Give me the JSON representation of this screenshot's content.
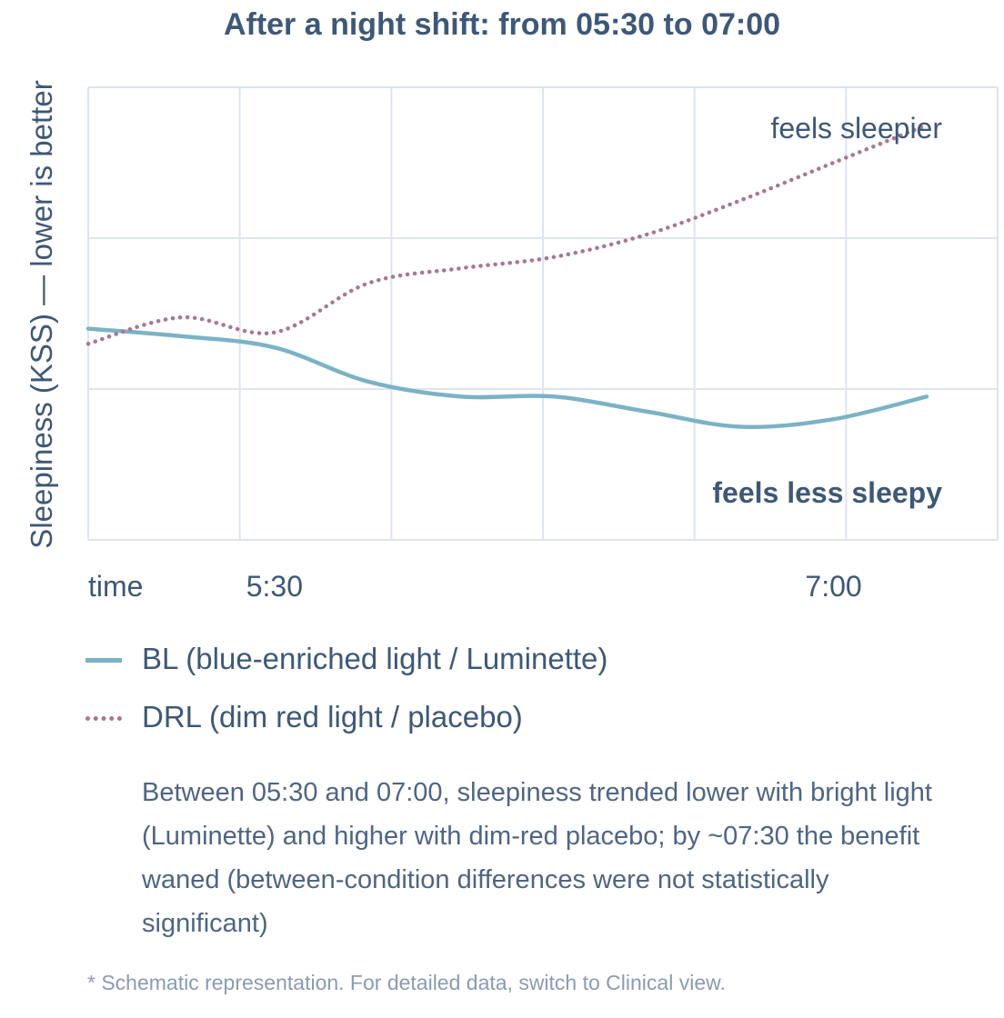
{
  "chart_data": {
    "type": "line",
    "title": "After a night shift: from 05:30 to 07:00",
    "ylabel": "Sleepiness (KSS) — lower is better",
    "xlabel": "time",
    "x_ticks": [
      "5:30",
      "7:00"
    ],
    "grid": true,
    "annotations": {
      "top": "feels sleepier",
      "bottom": "feels less sleepy"
    },
    "series": [
      {
        "name": "BL (blue-enriched light / Luminette)",
        "style": "solid",
        "color": "#7bb2c6",
        "x": [
          "05:00",
          "05:15",
          "05:30",
          "05:45",
          "06:00",
          "06:15",
          "06:30",
          "06:45",
          "07:00",
          "07:15"
        ],
        "y": [
          5.6,
          5.4,
          5.1,
          4.2,
          3.8,
          3.8,
          3.4,
          3.0,
          3.2,
          3.8
        ]
      },
      {
        "name": "DRL (dim red light / placebo)",
        "style": "dotted",
        "color": "#a87793",
        "x": [
          "05:00",
          "05:15",
          "05:30",
          "05:45",
          "06:00",
          "06:15",
          "06:30",
          "06:45",
          "07:00",
          "07:15"
        ],
        "y": [
          5.2,
          5.9,
          5.5,
          6.8,
          7.2,
          7.5,
          8.1,
          9.0,
          10.0,
          11.0
        ]
      }
    ]
  },
  "summary": "Between 05:30 and 07:00, sleepiness trended lower with bright light (Luminette) and higher with dim-red placebo; by ~07:30 the benefit waned (between-condition differences were not statistically significant)",
  "footnote": "* Schematic representation. For detailed data, switch to Clinical view."
}
